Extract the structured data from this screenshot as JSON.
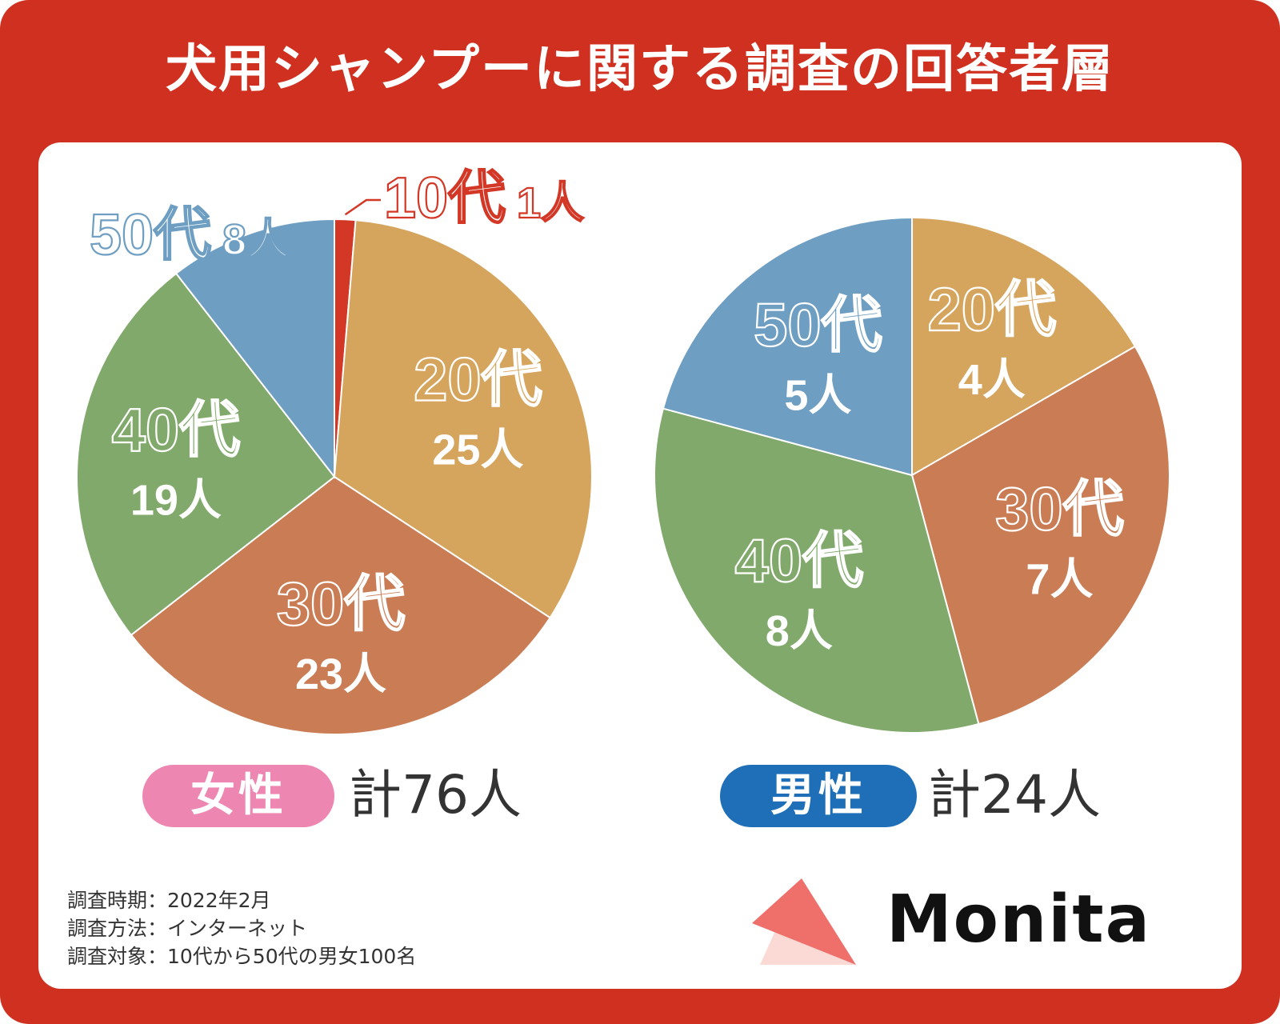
{
  "title": "犬用シャンプーに関する調査の回答者層",
  "colors": {
    "frame": "#d03020",
    "age10": "#d33726",
    "age20": "#d5a55e",
    "age30": "#ca7d55",
    "age40": "#80a96b",
    "age50": "#6e9ec2",
    "female_pill": "#ee86b2",
    "male_pill": "#1e6fb8"
  },
  "chart_data": [
    {
      "type": "pie",
      "group": "女性",
      "total_label": "計76人",
      "slices": [
        {
          "label": "10代",
          "count_label": "1人",
          "value": 1,
          "color_key": "age10"
        },
        {
          "label": "20代",
          "count_label": "25人",
          "value": 25,
          "color_key": "age20"
        },
        {
          "label": "30代",
          "count_label": "23人",
          "value": 23,
          "color_key": "age30"
        },
        {
          "label": "40代",
          "count_label": "19人",
          "value": 19,
          "color_key": "age40"
        },
        {
          "label": "50代",
          "count_label": "8人",
          "value": 8,
          "color_key": "age50"
        }
      ]
    },
    {
      "type": "pie",
      "group": "男性",
      "total_label": "計24人",
      "slices": [
        {
          "label": "20代",
          "count_label": "4人",
          "value": 4,
          "color_key": "age20"
        },
        {
          "label": "30代",
          "count_label": "7人",
          "value": 7,
          "color_key": "age30"
        },
        {
          "label": "40代",
          "count_label": "8人",
          "value": 8,
          "color_key": "age40"
        },
        {
          "label": "50代",
          "count_label": "5人",
          "value": 5,
          "color_key": "age50"
        }
      ]
    }
  ],
  "notes": [
    "調査時期：2022年2月",
    "調査方法：インターネット",
    "調査対象：10代から50代の男女100名"
  ],
  "logo": {
    "text": "Monita"
  }
}
